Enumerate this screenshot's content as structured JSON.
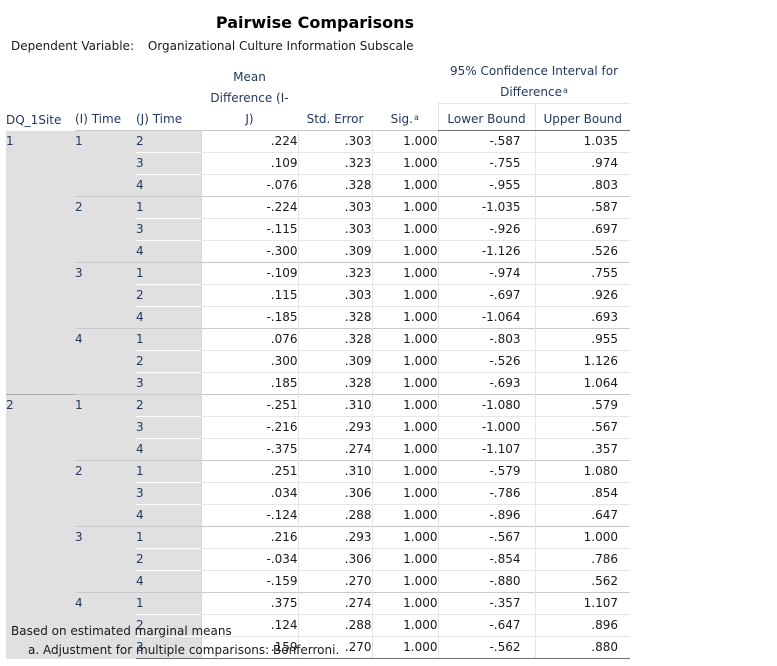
{
  "title": "Pairwise Comparisons",
  "dependent_variable_label": "Dependent Variable:",
  "dependent_variable": "Organizational Culture Information Subscale",
  "headers": {
    "site": "DQ_1Site",
    "i_time": "(I) Time",
    "j_time": "(J) Time",
    "mean_diff": "Mean Difference (I-J)",
    "std_error": "Std. Error",
    "sig": "Sig.",
    "sig_sup": "a",
    "ci": "95% Confidence Interval for Difference",
    "ci_sup": "a",
    "lower": "Lower Bound",
    "upper": "Upper Bound"
  },
  "groups": [
    {
      "site": "1",
      "i": "1",
      "rows": [
        {
          "j": "2",
          "md": ".224",
          "se": ".303",
          "sig": "1.000",
          "lo": "-.587",
          "up": "1.035"
        },
        {
          "j": "3",
          "md": ".109",
          "se": ".323",
          "sig": "1.000",
          "lo": "-.755",
          "up": ".974"
        },
        {
          "j": "4",
          "md": "-.076",
          "se": ".328",
          "sig": "1.000",
          "lo": "-.955",
          "up": ".803"
        }
      ]
    },
    {
      "site": "",
      "i": "2",
      "rows": [
        {
          "j": "1",
          "md": "-.224",
          "se": ".303",
          "sig": "1.000",
          "lo": "-1.035",
          "up": ".587"
        },
        {
          "j": "3",
          "md": "-.115",
          "se": ".303",
          "sig": "1.000",
          "lo": "-.926",
          "up": ".697"
        },
        {
          "j": "4",
          "md": "-.300",
          "se": ".309",
          "sig": "1.000",
          "lo": "-1.126",
          "up": ".526"
        }
      ]
    },
    {
      "site": "",
      "i": "3",
      "rows": [
        {
          "j": "1",
          "md": "-.109",
          "se": ".323",
          "sig": "1.000",
          "lo": "-.974",
          "up": ".755"
        },
        {
          "j": "2",
          "md": ".115",
          "se": ".303",
          "sig": "1.000",
          "lo": "-.697",
          "up": ".926"
        },
        {
          "j": "4",
          "md": "-.185",
          "se": ".328",
          "sig": "1.000",
          "lo": "-1.064",
          "up": ".693"
        }
      ]
    },
    {
      "site": "",
      "i": "4",
      "rows": [
        {
          "j": "1",
          "md": ".076",
          "se": ".328",
          "sig": "1.000",
          "lo": "-.803",
          "up": ".955"
        },
        {
          "j": "2",
          "md": ".300",
          "se": ".309",
          "sig": "1.000",
          "lo": "-.526",
          "up": "1.126"
        },
        {
          "j": "3",
          "md": ".185",
          "se": ".328",
          "sig": "1.000",
          "lo": "-.693",
          "up": "1.064"
        }
      ]
    },
    {
      "site": "2",
      "i": "1",
      "rows": [
        {
          "j": "2",
          "md": "-.251",
          "se": ".310",
          "sig": "1.000",
          "lo": "-1.080",
          "up": ".579"
        },
        {
          "j": "3",
          "md": "-.216",
          "se": ".293",
          "sig": "1.000",
          "lo": "-1.000",
          "up": ".567"
        },
        {
          "j": "4",
          "md": "-.375",
          "se": ".274",
          "sig": "1.000",
          "lo": "-1.107",
          "up": ".357"
        }
      ]
    },
    {
      "site": "",
      "i": "2",
      "rows": [
        {
          "j": "1",
          "md": ".251",
          "se": ".310",
          "sig": "1.000",
          "lo": "-.579",
          "up": "1.080"
        },
        {
          "j": "3",
          "md": ".034",
          "se": ".306",
          "sig": "1.000",
          "lo": "-.786",
          "up": ".854"
        },
        {
          "j": "4",
          "md": "-.124",
          "se": ".288",
          "sig": "1.000",
          "lo": "-.896",
          "up": ".647"
        }
      ]
    },
    {
      "site": "",
      "i": "3",
      "rows": [
        {
          "j": "1",
          "md": ".216",
          "se": ".293",
          "sig": "1.000",
          "lo": "-.567",
          "up": "1.000"
        },
        {
          "j": "2",
          "md": "-.034",
          "se": ".306",
          "sig": "1.000",
          "lo": "-.854",
          "up": ".786"
        },
        {
          "j": "4",
          "md": "-.159",
          "se": ".270",
          "sig": "1.000",
          "lo": "-.880",
          "up": ".562"
        }
      ]
    },
    {
      "site": "",
      "i": "4",
      "rows": [
        {
          "j": "1",
          "md": ".375",
          "se": ".274",
          "sig": "1.000",
          "lo": "-.357",
          "up": "1.107"
        },
        {
          "j": "2",
          "md": ".124",
          "se": ".288",
          "sig": "1.000",
          "lo": "-.647",
          "up": ".896"
        },
        {
          "j": "3",
          "md": ".159",
          "se": ".270",
          "sig": "1.000",
          "lo": "-.562",
          "up": ".880"
        }
      ]
    }
  ],
  "footnotes": {
    "based_on": "Based on estimated marginal means",
    "adjustment": "a. Adjustment for multiple comparisons: Bonferroni."
  }
}
